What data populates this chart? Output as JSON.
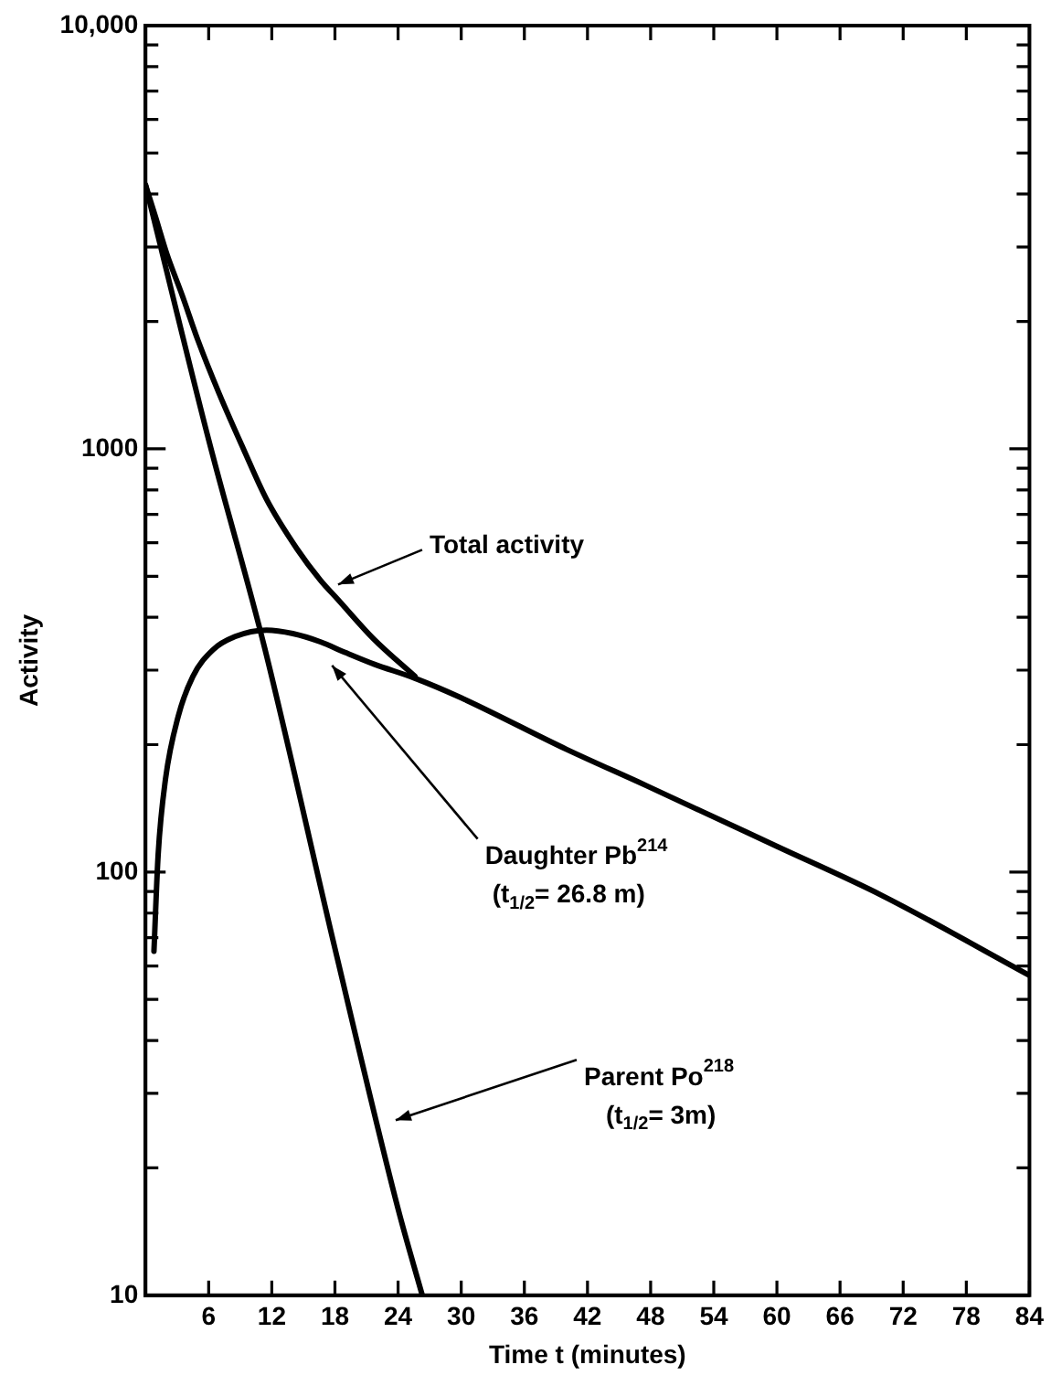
{
  "chart_data": {
    "type": "line",
    "xlabel": "Time t (minutes)",
    "ylabel": "Activity",
    "xlim": [
      0,
      84
    ],
    "xticks": [
      6,
      12,
      18,
      24,
      30,
      36,
      42,
      48,
      54,
      60,
      66,
      72,
      78,
      84
    ],
    "ylim": [
      10,
      10000
    ],
    "yticks": [
      10,
      {
        "value": 20,
        "label": null
      },
      {
        "value": 30,
        "label": null
      },
      {
        "value": 40,
        "label": null
      },
      {
        "value": 50,
        "label": null
      },
      {
        "value": 60,
        "label": null
      },
      {
        "value": 70,
        "label": null
      },
      {
        "value": 80,
        "label": null
      },
      {
        "value": 90,
        "label": null
      },
      100,
      {
        "value": 200,
        "label": null
      },
      {
        "value": 300,
        "label": null
      },
      {
        "value": 400,
        "label": null
      },
      {
        "value": 500,
        "label": null
      },
      {
        "value": 600,
        "label": null
      },
      {
        "value": 700,
        "label": null
      },
      {
        "value": 800,
        "label": null
      },
      {
        "value": 900,
        "label": null
      },
      1000,
      {
        "value": 2000,
        "label": null
      },
      {
        "value": 3000,
        "label": null
      },
      {
        "value": 4000,
        "label": null
      },
      {
        "value": 5000,
        "label": null
      },
      {
        "value": 6000,
        "label": null
      },
      {
        "value": 7000,
        "label": null
      },
      {
        "value": 8000,
        "label": null
      },
      {
        "value": 9000,
        "label": null
      },
      {
        "value": 10000,
        "label": "10,000"
      }
    ],
    "log": "y",
    "grid": false,
    "legend": false,
    "marker": "none",
    "line_style": "solid",
    "series": [
      {
        "color": "#000000",
        "x": [
          0,
          1,
          2,
          3.5,
          5,
          7,
          9.3,
          11.5,
          14.4,
          16.6,
          18.3,
          21.7,
          25.6
        ],
        "values": [
          4200,
          3500,
          2900,
          2300,
          1800,
          1350,
          1000,
          760,
          580,
          490,
          440,
          355,
          290
        ]
      },
      {
        "color": "#000000",
        "x": [
          0,
          6,
          11.3,
          18,
          24,
          26.3
        ],
        "values": [
          4200,
          1050,
          340,
          66,
          16,
          10
        ]
      },
      {
        "color": "#000000",
        "x": [
          0.8,
          1.2,
          1.9,
          3.1,
          4.5,
          6.4,
          8.5,
          11.5,
          14,
          16.6,
          19,
          21.7,
          25.6,
          30,
          40,
          47.6,
          60,
          70,
          84
        ],
        "values": [
          65,
          110,
          166,
          233,
          290,
          335,
          360,
          373,
          366,
          350,
          330,
          310,
          287,
          258,
          195,
          160,
          115,
          88,
          57
        ]
      }
    ],
    "annotations": [
      {
        "text": "Total activity",
        "x": 18.3,
        "y": 478
      },
      "Daughter Pb$^{214}$",
      "(t$_{1/2}$= 26.8 m)",
      "Parent Po$^{218}$",
      "(t$_{1/2}$= 3m)"
    ]
  }
}
